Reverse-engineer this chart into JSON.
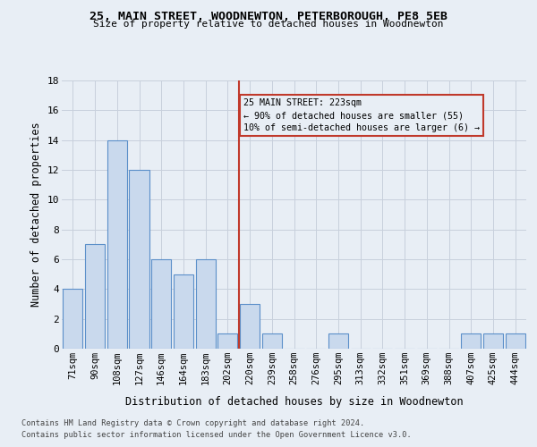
{
  "title1": "25, MAIN STREET, WOODNEWTON, PETERBOROUGH, PE8 5EB",
  "title2": "Size of property relative to detached houses in Woodnewton",
  "xlabel": "Distribution of detached houses by size in Woodnewton",
  "ylabel": "Number of detached properties",
  "categories": [
    "71sqm",
    "90sqm",
    "108sqm",
    "127sqm",
    "146sqm",
    "164sqm",
    "183sqm",
    "202sqm",
    "220sqm",
    "239sqm",
    "258sqm",
    "276sqm",
    "295sqm",
    "313sqm",
    "332sqm",
    "351sqm",
    "369sqm",
    "388sqm",
    "407sqm",
    "425sqm",
    "444sqm"
  ],
  "values": [
    4,
    7,
    14,
    12,
    6,
    5,
    6,
    1,
    3,
    1,
    0,
    0,
    1,
    0,
    0,
    0,
    0,
    0,
    1,
    1,
    1
  ],
  "bar_color": "#c9d9ed",
  "bar_edge_color": "#5b8fc9",
  "subject_line_index": 8,
  "subject_line_color": "#c0392b",
  "annotation_text": "25 MAIN STREET: 223sqm\n← 90% of detached houses are smaller (55)\n10% of semi-detached houses are larger (6) →",
  "annotation_box_color": "#c0392b",
  "ylim": [
    0,
    18
  ],
  "yticks": [
    0,
    2,
    4,
    6,
    8,
    10,
    12,
    14,
    16,
    18
  ],
  "grid_color": "#c8d0dc",
  "bg_color": "#e8eef5",
  "footer1": "Contains HM Land Registry data © Crown copyright and database right 2024.",
  "footer2": "Contains public sector information licensed under the Open Government Licence v3.0."
}
